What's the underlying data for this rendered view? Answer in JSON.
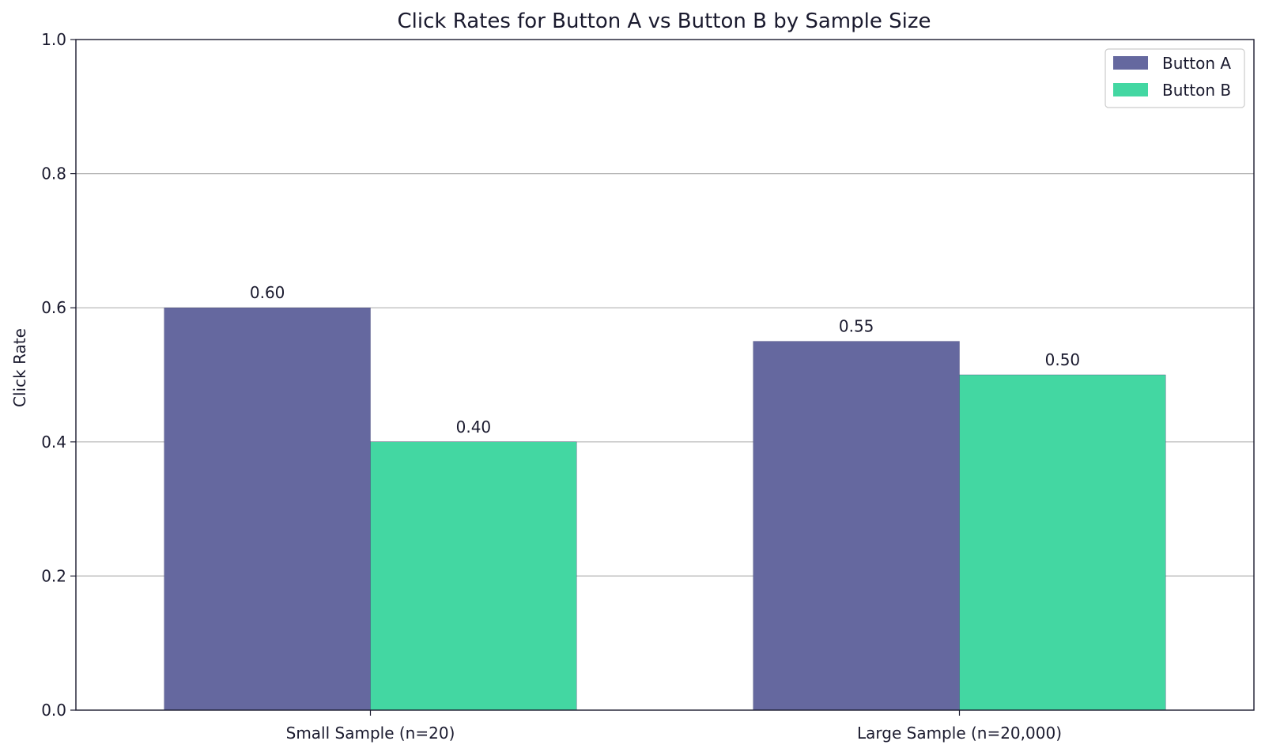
{
  "chart_data": {
    "type": "bar",
    "title": "Click Rates for Button A vs Button B by Sample Size",
    "xlabel": "",
    "ylabel": "Click Rate",
    "categories": [
      "Small Sample (n=20)",
      "Large Sample (n=20,000)"
    ],
    "series": [
      {
        "name": "Button A",
        "values": [
          0.6,
          0.55
        ],
        "labels": [
          "0.60",
          "0.55"
        ],
        "color": "#65689f"
      },
      {
        "name": "Button B",
        "values": [
          0.4,
          0.5
        ],
        "labels": [
          "0.40",
          "0.50"
        ],
        "color": "#43d7a2"
      }
    ],
    "ylim": [
      0,
      1.0
    ],
    "yticks": [
      "0.0",
      "0.2",
      "0.4",
      "0.6",
      "0.8",
      "1.0"
    ],
    "grid": "horizontal",
    "legend_position": "top-right",
    "colors": {
      "axis": "#1a1a2e",
      "grid": "#b0b0b0"
    }
  }
}
